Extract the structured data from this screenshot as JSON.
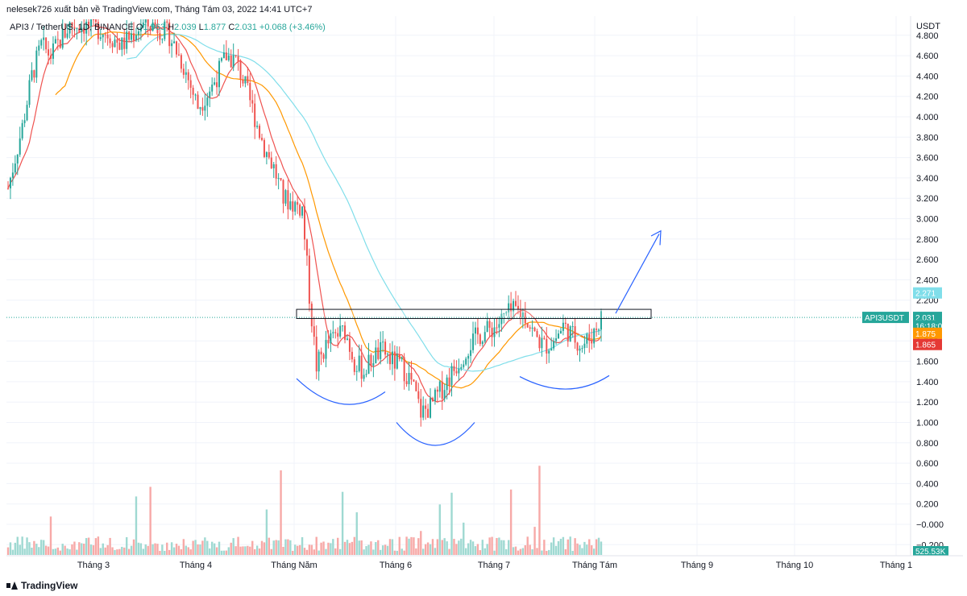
{
  "header": {
    "text": "nelesek726 xuất bản về TradingView.com, Tháng Tám 03, 2022 14:41 UTC+7"
  },
  "legend": {
    "symbol": "API3 / TetherUS, 1D, BINANCE",
    "o_label": "O",
    "o_value": "1.963",
    "h_label": "H",
    "h_value": "2.039",
    "l_label": "L",
    "l_value": "1.877",
    "c_label": "C",
    "c_value": "2.031",
    "change": "+0.068 (+3.46%)"
  },
  "footer": {
    "brand": "TradingView"
  },
  "chart_data": {
    "type": "candlestick",
    "y_axis_unit": "USDT",
    "y_ticks": [
      "4.800",
      "4.600",
      "4.400",
      "4.200",
      "4.000",
      "3.800",
      "3.600",
      "3.400",
      "3.200",
      "3.000",
      "2.800",
      "2.600",
      "2.400",
      "2.200",
      "1.800",
      "1.600",
      "1.400",
      "1.200",
      "1.000",
      "0.800",
      "0.600",
      "0.400",
      "0.200",
      "−0.000",
      "−0.200"
    ],
    "y_range": [
      -0.2,
      4.85
    ],
    "x_ticks": [
      "Tháng 3",
      "Tháng 4",
      "Tháng Năm",
      "Tháng 6",
      "Tháng 7",
      "Tháng Tám",
      "Tháng 9",
      "Tháng 10",
      "Tháng 1"
    ],
    "price_labels": [
      {
        "text": "2.271",
        "color": "#80deea",
        "price": 2.271
      },
      {
        "text": "API3USDT",
        "color": "#26a69a",
        "price": 2.031
      },
      {
        "text": "2.031",
        "color": "#26a69a",
        "price": 2.031
      },
      {
        "text": "16:18:03",
        "color": "#26a69a",
        "price": 1.95
      },
      {
        "text": "1.875",
        "color": "#ff9800",
        "price": 1.875
      },
      {
        "text": "1.865",
        "color": "#e53935",
        "price": 1.765
      }
    ],
    "volume_label": "525.53K",
    "resistance_zone": [
      2.02,
      2.11
    ],
    "pattern": "inverse head and shoulders",
    "colors": {
      "up": "#26a69a",
      "down": "#ef5350",
      "ma_short": "#ef5350",
      "ma_mid": "#ff9800",
      "ma_long": "#80deea",
      "annotation": "#2962ff"
    }
  }
}
